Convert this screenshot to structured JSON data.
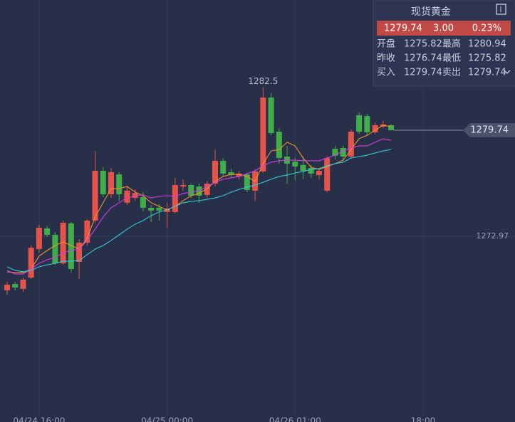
{
  "chart_data": {
    "type": "candlestick",
    "x": [
      0,
      1,
      2,
      3,
      4,
      5,
      6,
      7,
      8,
      9,
      10,
      11,
      12,
      13,
      14,
      15,
      16,
      17,
      18,
      19,
      20,
      21,
      22,
      23,
      24,
      25,
      26,
      27,
      28,
      29,
      30,
      31,
      32,
      33,
      34,
      35,
      36,
      37,
      38,
      39,
      40,
      41,
      42,
      43,
      44,
      45,
      46,
      47,
      48
    ],
    "open": [
      1269.51,
      1269.92,
      1269.61,
      1270.33,
      1272.15,
      1273.47,
      1273.06,
      1271.24,
      1273.79,
      1271.33,
      1272.56,
      1273.97,
      1277.15,
      1275.65,
      1276.92,
      1275.11,
      1275.42,
      1275.47,
      1274.79,
      1274.79,
      1274.52,
      1274.52,
      1276.15,
      1276.24,
      1276.15,
      1275.61,
      1276.33,
      1277.79,
      1277.06,
      1276.79,
      1276.92,
      1275.88,
      1277.11,
      1281.83,
      1279.65,
      1278.06,
      1277.74,
      1277.52,
      1277.33,
      1276.88,
      1275.88,
      1278.56,
      1278.61,
      1278.06,
      1280.7,
      1280.65,
      1279.61,
      1279.97,
      1280.06
    ],
    "high": [
      1270.06,
      1270.06,
      1270.33,
      1272.38,
      1273.7,
      1273.61,
      1273.24,
      1273.97,
      1273.88,
      1272.79,
      1274.06,
      1278.42,
      1277.38,
      1277.33,
      1277.06,
      1276.15,
      1275.97,
      1275.79,
      1274.97,
      1275.02,
      1275.11,
      1276.7,
      1276.61,
      1276.33,
      1276.33,
      1276.47,
      1278.51,
      1277.97,
      1277.29,
      1277.15,
      1277.01,
      1277.24,
      1282.5,
      1282.15,
      1279.88,
      1278.74,
      1277.97,
      1278.06,
      1277.52,
      1277.33,
      1278.06,
      1278.74,
      1278.74,
      1279.79,
      1280.88,
      1280.79,
      1280.24,
      1280.33,
      1280.11
    ],
    "low": [
      1269.24,
      1269.51,
      1269.42,
      1270.24,
      1271.92,
      1272.92,
      1271.15,
      1271.15,
      1270.65,
      1270.24,
      1272.38,
      1273.83,
      1275.47,
      1275.42,
      1275.2,
      1274.97,
      1275.24,
      1274.56,
      1273.88,
      1273.97,
      1273.51,
      1274.42,
      1275.88,
      1275.42,
      1275.11,
      1275.42,
      1276.15,
      1276.79,
      1276.7,
      1276.61,
      1275.79,
      1275.24,
      1277.01,
      1279.42,
      1277.61,
      1276.33,
      1276.56,
      1276.61,
      1276.7,
      1276.61,
      1275.79,
      1277.88,
      1277.79,
      1277.97,
      1279.51,
      1279.42,
      1279.47,
      1279.88,
      1279.74
    ],
    "close": [
      1269.88,
      1269.7,
      1270.2,
      1272.24,
      1273.51,
      1273.06,
      1271.24,
      1273.83,
      1270.88,
      1272.56,
      1273.97,
      1277.15,
      1275.65,
      1277.06,
      1275.65,
      1275.88,
      1275.74,
      1274.79,
      1274.61,
      1274.61,
      1274.74,
      1276.24,
      1276.24,
      1275.56,
      1275.56,
      1276.33,
      1277.79,
      1276.97,
      1276.88,
      1276.97,
      1275.92,
      1277.11,
      1281.83,
      1279.56,
      1277.97,
      1277.61,
      1277.42,
      1277.15,
      1276.97,
      1277.15,
      1277.97,
      1278.11,
      1278.06,
      1279.65,
      1279.65,
      1279.61,
      1280.06,
      1280.11,
      1279.74
    ],
    "up_color": "#e5534b",
    "down_color": "#3fae49",
    "series": [
      {
        "color": "#f0902a",
        "values": [
          1270.7,
          1270.65,
          1270.65,
          1270.88,
          1271.7,
          1272.06,
          1272.38,
          1272.61,
          1272.38,
          1272.15,
          1272.83,
          1274.2,
          1275.11,
          1276.02,
          1276.02,
          1276.15,
          1275.79,
          1275.56,
          1275.11,
          1274.88,
          1274.65,
          1274.88,
          1275.24,
          1275.56,
          1275.7,
          1276.02,
          1276.47,
          1276.79,
          1276.92,
          1276.92,
          1276.79,
          1276.47,
          1277.61,
          1278.42,
          1278.51,
          1278.97,
          1278.74,
          1277.97,
          1277.38,
          1277.24,
          1277.42,
          1277.61,
          1277.83,
          1278.51,
          1279.2,
          1279.42,
          1279.74,
          1280.06,
          1279.97
        ]
      },
      {
        "color": "#d63be0",
        "values": [
          1270.79,
          1270.56,
          1270.56,
          1270.88,
          1271.24,
          1271.47,
          1271.61,
          1271.92,
          1272.06,
          1272.15,
          1272.7,
          1273.42,
          1274.2,
          1274.79,
          1275.11,
          1275.42,
          1275.56,
          1275.61,
          1275.42,
          1275.52,
          1275.56,
          1275.52,
          1275.7,
          1275.79,
          1275.88,
          1276.15,
          1276.42,
          1276.61,
          1276.7,
          1276.79,
          1276.97,
          1277.15,
          1277.47,
          1277.7,
          1277.79,
          1277.83,
          1277.83,
          1277.79,
          1277.79,
          1277.79,
          1277.97,
          1278.15,
          1278.42,
          1278.61,
          1278.74,
          1278.74,
          1278.97,
          1279.2,
          1279.1
        ]
      },
      {
        "color": "#33c8d8",
        "values": [
          1271.02,
          1270.79,
          1270.7,
          1270.79,
          1271.02,
          1271.15,
          1271.24,
          1271.38,
          1271.38,
          1271.42,
          1271.79,
          1272.15,
          1272.38,
          1272.7,
          1273.06,
          1273.42,
          1273.74,
          1273.97,
          1274.29,
          1274.52,
          1274.65,
          1274.88,
          1275.11,
          1275.2,
          1275.24,
          1275.33,
          1275.42,
          1275.56,
          1275.79,
          1275.97,
          1276.11,
          1276.24,
          1276.42,
          1276.61,
          1276.79,
          1276.88,
          1277.01,
          1277.11,
          1277.24,
          1277.29,
          1277.47,
          1277.61,
          1277.7,
          1277.97,
          1278.06,
          1278.15,
          1278.29,
          1278.42,
          1278.51
        ]
      }
    ],
    "xlim": [
      -0.89,
      63.49
    ],
    "ylim": [
      1261.47,
      1288.06
    ],
    "xticks": [
      {
        "value": 4,
        "label": "04/24 16:00"
      },
      {
        "value": 20,
        "label": "04/25 00:00"
      },
      {
        "value": 36,
        "label": "04/26 01:00"
      },
      {
        "value": 52,
        "label": "18:00"
      }
    ],
    "yticks": [
      1272.97
    ],
    "grid": true
  },
  "quote_panel": {
    "title": "现货黄金",
    "price": "1279.74",
    "change": "3.00",
    "change_pct": "0.23%",
    "rows": [
      [
        "开盘",
        "1275.82",
        "最高",
        "1280.94"
      ],
      [
        "昨收",
        "1276.74",
        "最低",
        "1275.82"
      ],
      [
        "买入",
        "1279.74",
        "卖出",
        "1279.74"
      ]
    ]
  }
}
